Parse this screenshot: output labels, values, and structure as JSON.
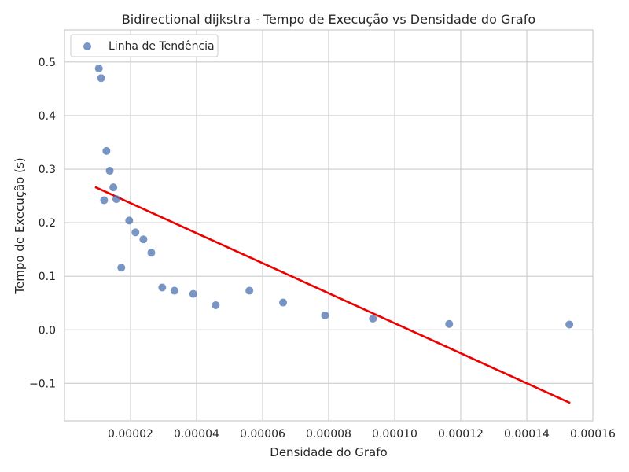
{
  "chart_data": {
    "type": "scatter",
    "title": "Bidirectional dijkstra - Tempo de Execução vs Densidade do Grafo",
    "xlabel": "Densidade do Grafo",
    "ylabel": "Tempo de Execução (s)",
    "xlim": [
      0.0,
      0.00016
    ],
    "ylim": [
      -0.17,
      0.56
    ],
    "x_ticks": [
      2e-05,
      4e-05,
      6e-05,
      8e-05,
      0.0001,
      0.00012,
      0.00014,
      0.00016
    ],
    "x_tick_labels": [
      "0.00002",
      "0.00004",
      "0.00006",
      "0.00008",
      "0.00010",
      "0.00012",
      "0.00014",
      "0.00016"
    ],
    "y_ticks": [
      -0.1,
      0.0,
      0.1,
      0.2,
      0.3,
      0.4,
      0.5
    ],
    "y_tick_labels": [
      "−0.1",
      "0.0",
      "0.1",
      "0.2",
      "0.3",
      "0.4",
      "0.5"
    ],
    "grid": true,
    "legend": {
      "position": "top-left",
      "entries": [
        "Linha de Tendência"
      ]
    },
    "colors": {
      "points": "#4c72b0",
      "trend": "#ee0000",
      "grid": "#cccccc",
      "frame": "#cccccc"
    },
    "series": [
      {
        "name": "Linha de Tendência",
        "type": "scatter",
        "x": [
          1.04e-05,
          1.11e-05,
          1.2e-05,
          1.27e-05,
          1.37e-05,
          1.48e-05,
          1.57e-05,
          1.72e-05,
          1.96e-05,
          2.15e-05,
          2.39e-05,
          2.63e-05,
          2.96e-05,
          3.33e-05,
          3.9e-05,
          4.58e-05,
          5.6e-05,
          6.62e-05,
          7.89e-05,
          9.34e-05,
          0.0001165,
          0.0001529
        ],
        "y": [
          0.488,
          0.47,
          0.242,
          0.334,
          0.297,
          0.266,
          0.244,
          0.116,
          0.204,
          0.182,
          0.169,
          0.144,
          0.079,
          0.073,
          0.067,
          0.046,
          0.073,
          0.051,
          0.027,
          0.021,
          0.011,
          0.01
        ]
      },
      {
        "type": "line",
        "x": [
          9.5e-06,
          0.0001529
        ],
        "y": [
          0.266,
          -0.136
        ]
      }
    ]
  }
}
